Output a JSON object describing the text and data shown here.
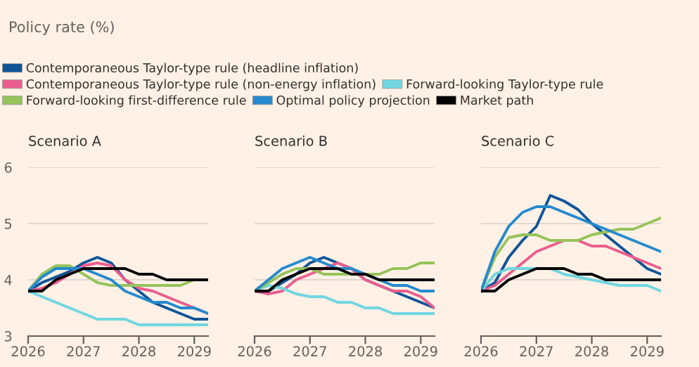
{
  "chart_data": [
    {
      "type": "line",
      "title": "Policy rate (%)",
      "subtitle": "Scenario A",
      "legend": "top",
      "grid": "y",
      "tick_labels": "xy",
      "x": [
        2026,
        2026.25,
        2026.5,
        2026.75,
        2027,
        2027.25,
        2027.5,
        2027.75,
        2028,
        2028.25,
        2028.5,
        2028.75,
        2029,
        2029.25
      ],
      "xlim": [
        2026,
        2029.25
      ],
      "xticks": [
        2026,
        2027,
        2028,
        2029
      ],
      "ylim": [
        3,
        6
      ],
      "yticks": [
        3,
        4,
        5,
        6
      ],
      "series": [
        {
          "name": "Contemporaneous Taylor-type rule (headline inflation)",
          "color": "#0f5499",
          "values": [
            3.8,
            3.95,
            4.05,
            4.15,
            4.3,
            4.4,
            4.3,
            4.0,
            3.8,
            3.6,
            3.5,
            3.4,
            3.3,
            3.3
          ]
        },
        {
          "name": "Contemporaneous Taylor-type rule (non-energy inflation)",
          "color": "#eb5e8d",
          "values": [
            3.8,
            3.85,
            3.95,
            4.1,
            4.25,
            4.3,
            4.25,
            4.0,
            3.85,
            3.8,
            3.7,
            3.6,
            3.5,
            3.4
          ]
        },
        {
          "name": "Forward-looking Taylor-type rule",
          "color": "#70d6e0",
          "values": [
            3.8,
            3.7,
            3.6,
            3.5,
            3.4,
            3.3,
            3.3,
            3.3,
            3.2,
            3.2,
            3.2,
            3.2,
            3.2,
            3.2
          ]
        },
        {
          "name": "Forward-looking first-difference rule",
          "color": "#96c35a",
          "values": [
            3.8,
            4.1,
            4.25,
            4.25,
            4.1,
            3.95,
            3.9,
            3.9,
            3.9,
            3.9,
            3.9,
            3.9,
            4.0,
            null
          ]
        },
        {
          "name": "Optimal policy projection",
          "color": "#2589cf",
          "values": [
            3.8,
            4.05,
            4.2,
            4.2,
            4.2,
            4.1,
            4.0,
            3.8,
            3.7,
            3.6,
            3.6,
            3.5,
            3.5,
            3.4
          ]
        },
        {
          "name": "Market path",
          "color": "#000000",
          "values": [
            3.8,
            3.8,
            4.0,
            4.1,
            4.2,
            4.2,
            4.2,
            4.2,
            4.1,
            4.1,
            4.0,
            4.0,
            4.0,
            4.0
          ]
        }
      ]
    },
    {
      "type": "line",
      "title": "Scenario B",
      "grid": "y",
      "tick_labels": "x",
      "x": [
        2026,
        2026.25,
        2026.5,
        2026.75,
        2027,
        2027.25,
        2027.5,
        2027.75,
        2028,
        2028.25,
        2028.5,
        2028.75,
        2029,
        2029.25
      ],
      "xlim": [
        2026,
        2029.25
      ],
      "xticks": [
        2026,
        2027,
        2028,
        2029
      ],
      "ylim": [
        3,
        6
      ],
      "yticks": [
        3,
        4,
        5,
        6
      ],
      "series": [
        {
          "color": "#0f5499",
          "values": [
            3.8,
            3.8,
            3.95,
            4.1,
            4.3,
            4.4,
            4.3,
            4.2,
            4.0,
            3.9,
            3.8,
            3.7,
            3.6,
            3.5
          ]
        },
        {
          "color": "#eb5e8d",
          "values": [
            3.8,
            3.75,
            3.8,
            4.0,
            4.1,
            4.2,
            4.3,
            4.2,
            4.0,
            3.9,
            3.8,
            3.8,
            3.7,
            3.5
          ]
        },
        {
          "color": "#70d6e0",
          "values": [
            3.8,
            3.9,
            3.85,
            3.75,
            3.7,
            3.7,
            3.6,
            3.6,
            3.5,
            3.5,
            3.4,
            3.4,
            3.4,
            3.4
          ]
        },
        {
          "color": "#96c35a",
          "values": [
            3.8,
            3.95,
            4.1,
            4.2,
            4.2,
            4.1,
            4.1,
            4.1,
            4.1,
            4.1,
            4.2,
            4.2,
            4.3,
            4.3
          ]
        },
        {
          "color": "#2589cf",
          "values": [
            3.8,
            4.0,
            4.2,
            4.3,
            4.4,
            4.3,
            4.2,
            4.2,
            4.1,
            4.0,
            3.9,
            3.9,
            3.8,
            3.8
          ]
        },
        {
          "color": "#000000",
          "values": [
            3.8,
            3.8,
            4.0,
            4.1,
            4.2,
            4.2,
            4.2,
            4.1,
            4.1,
            4.0,
            4.0,
            4.0,
            4.0,
            4.0
          ]
        }
      ]
    },
    {
      "type": "line",
      "title": "Scenario C",
      "grid": "y",
      "tick_labels": "x",
      "x": [
        2026,
        2026.25,
        2026.5,
        2026.75,
        2027,
        2027.25,
        2027.5,
        2027.75,
        2028,
        2028.25,
        2028.5,
        2028.75,
        2029,
        2029.25
      ],
      "xlim": [
        2026,
        2029.25
      ],
      "xticks": [
        2026,
        2027,
        2028,
        2029
      ],
      "ylim": [
        3,
        6
      ],
      "yticks": [
        3,
        4,
        5,
        6
      ],
      "series": [
        {
          "color": "#0f5499",
          "values": [
            3.8,
            3.95,
            4.4,
            4.7,
            4.95,
            5.5,
            5.4,
            5.25,
            5.0,
            4.8,
            4.6,
            4.4,
            4.2,
            4.1
          ]
        },
        {
          "color": "#eb5e8d",
          "values": [
            3.8,
            3.9,
            4.1,
            4.3,
            4.5,
            4.6,
            4.7,
            4.7,
            4.6,
            4.6,
            4.5,
            4.4,
            4.3,
            4.2
          ]
        },
        {
          "color": "#70d6e0",
          "values": [
            3.8,
            4.1,
            4.2,
            4.2,
            4.2,
            4.2,
            4.1,
            4.05,
            4.0,
            3.95,
            3.9,
            3.9,
            3.9,
            3.8
          ]
        },
        {
          "color": "#96c35a",
          "values": [
            3.8,
            4.4,
            4.75,
            4.8,
            4.8,
            4.7,
            4.7,
            4.7,
            4.8,
            4.85,
            4.9,
            4.9,
            5.0,
            5.1
          ]
        },
        {
          "color": "#2589cf",
          "values": [
            3.8,
            4.5,
            4.95,
            5.2,
            5.3,
            5.3,
            5.2,
            5.1,
            5.0,
            4.9,
            4.8,
            4.7,
            4.6,
            4.5
          ]
        },
        {
          "color": "#000000",
          "values": [
            3.8,
            3.8,
            4.0,
            4.1,
            4.2,
            4.2,
            4.2,
            4.1,
            4.1,
            4.0,
            4.0,
            4.0,
            4.0,
            4.0
          ]
        }
      ]
    }
  ]
}
